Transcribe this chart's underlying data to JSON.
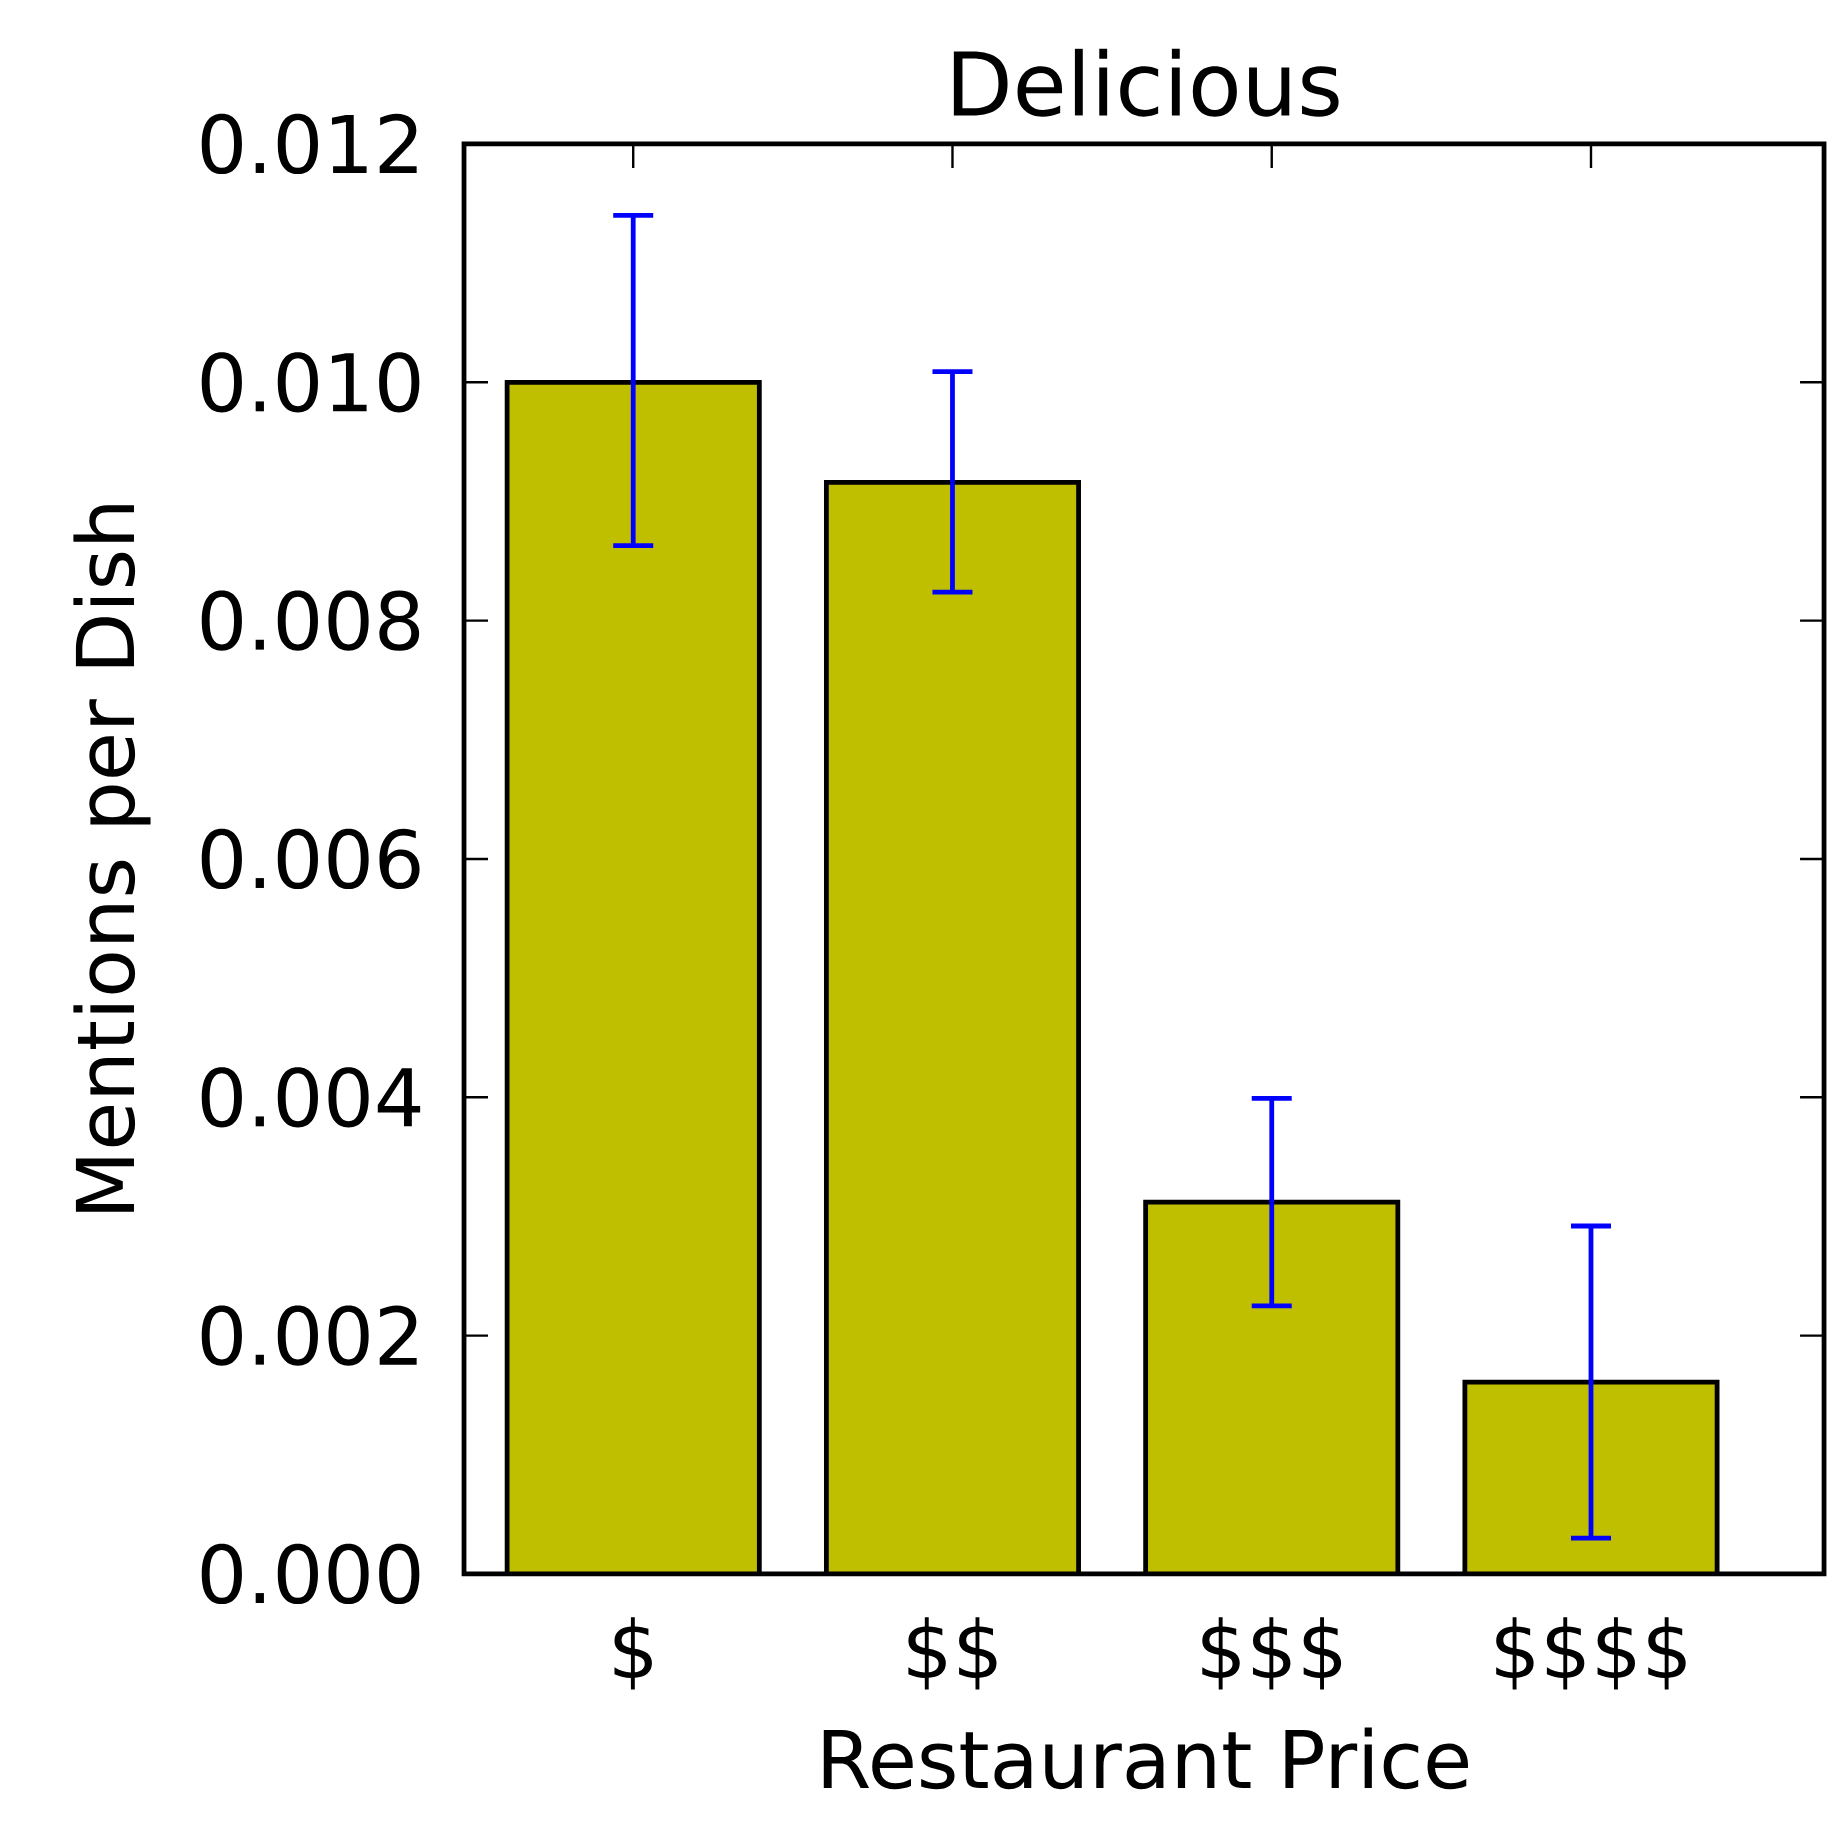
{
  "chart_data": {
    "type": "bar",
    "title": "Delicious",
    "xlabel": "Restaurant Price",
    "ylabel": "Mentions per Dish",
    "categories": [
      "$",
      "$$",
      "$$$",
      "$$$$"
    ],
    "values": [
      0.01,
      0.00916,
      0.00312,
      0.00161
    ],
    "errors": [
      [
        0.00863,
        0.0114
      ],
      [
        0.00824,
        0.01009
      ],
      [
        0.00225,
        0.00399
      ],
      [
        0.0003,
        0.00292
      ]
    ],
    "color": "#bfbf00",
    "ylim": [
      0,
      0.012
    ],
    "yticks": [
      {
        "value": 0,
        "label": "0.000"
      },
      {
        "value": 0.002,
        "label": "0.002"
      },
      {
        "value": 0.004,
        "label": "0.004"
      },
      {
        "value": 0.006,
        "label": "0.006"
      },
      {
        "value": 0.008,
        "label": "0.008"
      },
      {
        "value": 0.01,
        "label": "0.010"
      },
      {
        "value": 0.012,
        "label": "0.012"
      }
    ],
    "grid": false
  }
}
